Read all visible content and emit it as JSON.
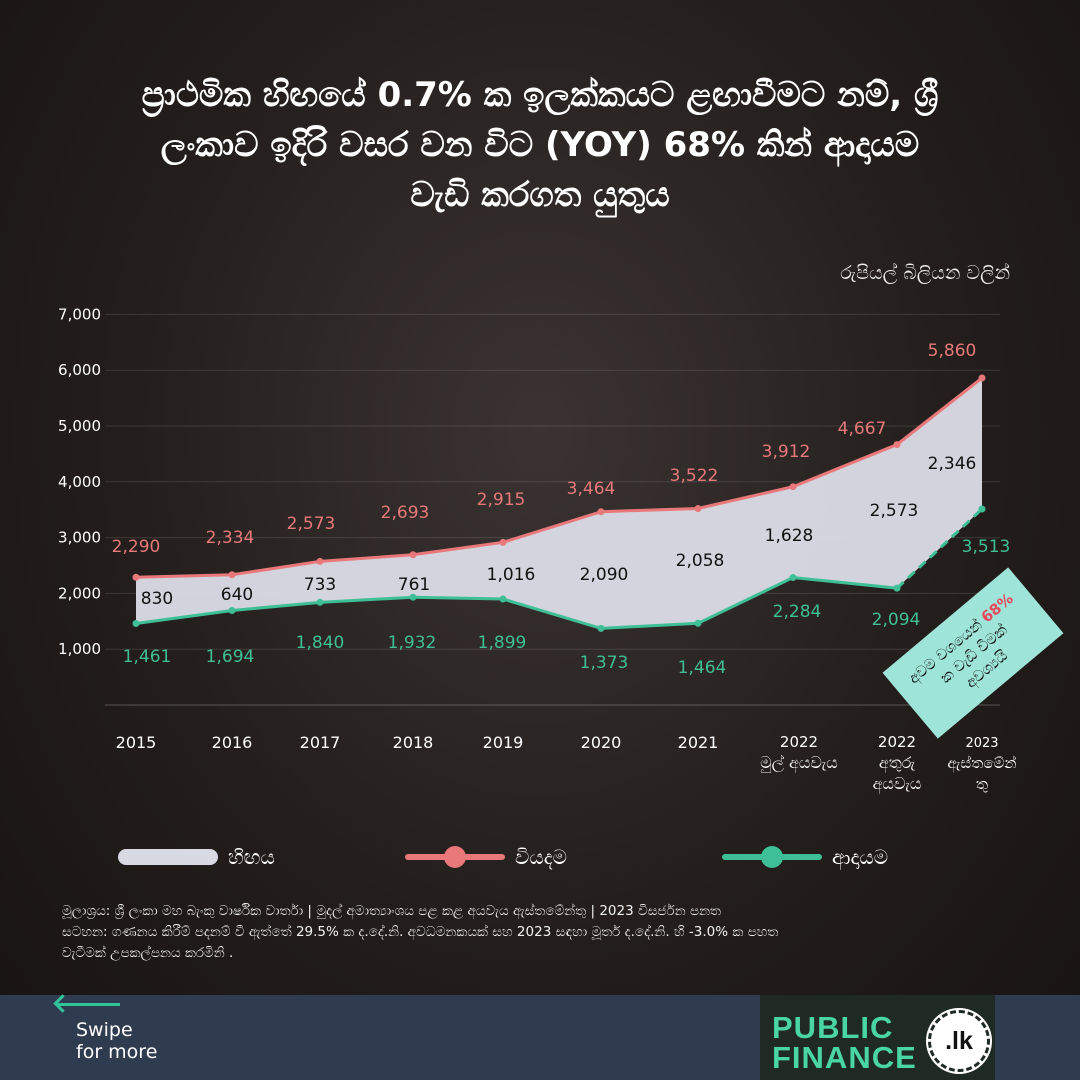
{
  "title_parts": {
    "p1": "ප්‍රාථමික හිඟයේ ",
    "p2": "0.7%",
    "p3": " ක ඉලක්කයට ළඟාවීමට නම්, ශ්‍රී",
    "p4": "ලංකාව ඉදිරි වසර වන විට ",
    "p5": "(YOY) 68%",
    "p6": " කින් ආදායම",
    "p7": "වැඩි කරගත යුතුය"
  },
  "unit_label": "රුපියල් බිලියන වලින්",
  "chart_data": {
    "type": "line",
    "ylim": [
      0,
      7000
    ],
    "yticks": [
      "7,000",
      "6,000",
      "5,000",
      "4,000",
      "3,000",
      "2,000",
      "1,000"
    ],
    "ytick_values": [
      7000,
      6000,
      5000,
      4000,
      3000,
      2000,
      1000
    ],
    "categories": [
      [
        "2015"
      ],
      [
        "2016"
      ],
      [
        "2017"
      ],
      [
        "2018"
      ],
      [
        "2019"
      ],
      [
        "2020"
      ],
      [
        "2021"
      ],
      [
        "2022",
        "මුල් අයවැය"
      ],
      [
        "2022",
        "අතුරු",
        "අයවැය"
      ],
      [
        "2023",
        "ඇස්තමේන්",
        "තු"
      ]
    ],
    "series": [
      {
        "name": "වියදම",
        "color": "#e8787a",
        "values": [
          2290,
          2334,
          2573,
          2693,
          2915,
          3464,
          3522,
          3912,
          4667,
          5860
        ],
        "labels": [
          "2,290",
          "2,334",
          "2,573",
          "2,693",
          "2,915",
          "3,464",
          "3,522",
          "3,912",
          "4,667",
          "5,860"
        ]
      },
      {
        "name": "ආදායම",
        "color": "#3fbf96",
        "values": [
          1461,
          1694,
          1840,
          1932,
          1899,
          1373,
          1464,
          2284,
          2094,
          3513
        ],
        "labels": [
          "1,461",
          "1,694",
          "1,840",
          "1,932",
          "1,899",
          "1,373",
          "1,464",
          "2,284",
          "2,094",
          "3,513"
        ]
      }
    ],
    "deficit_labels": [
      "830",
      "640",
      "733",
      "761",
      "1,016",
      "2,090",
      "2,058",
      "1,628",
      "2,573",
      "2,346"
    ],
    "deficit_name": "හිඟය",
    "deficit_color": "#dcdde8",
    "annotation": {
      "l1a": "අවම වශයෙන් ",
      "l1b": "68%",
      "l2": "ක වැඩි වීමක්",
      "l3": "අවශ්‍යයි",
      "bg": "#9fe4d8",
      "accent": "#e8485a"
    }
  },
  "legend": {
    "deficit": "හිඟය",
    "expenditure": "වියදම",
    "revenue": "ආදායම"
  },
  "notes": {
    "line1": "මූලාශ්‍රය: ශ්‍රී ලංකා මහ බැංකු වාර්ෂික වාර්තා | මුදල් අමාත්‍යාංශය පළ කළ අයවැය ඇස්තමේන්තු | 2023 විසර්ජන පනත",
    "line2": "සටහන: ගණනය කිරීම් පදනම් වී ඇත්තේ 29.5% ක ද.දේ.නි. අවධමනකයක් සහ 2023 සඳහා මූර්ත ද.දේ.නි. හි -3.0% ක පහත",
    "line3": "වැටීමක් උපකල්පනය කරමිනි ."
  },
  "footer": {
    "swipe_line1": "Swipe",
    "swipe_line2": "for more",
    "logo_line1": "PUBLIC",
    "logo_line2": "FINANCE",
    "logo_badge": ".lk"
  }
}
